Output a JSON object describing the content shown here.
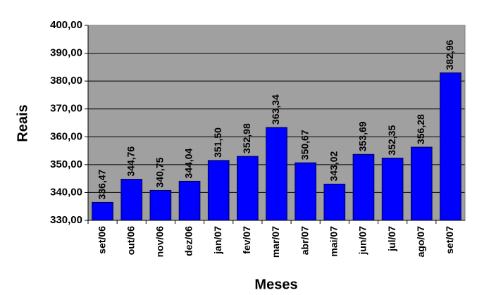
{
  "chart_data": {
    "type": "bar",
    "x_label": "Meses",
    "y_label": "Reais",
    "categories": [
      "set/06",
      "out/06",
      "nov/06",
      "dez/06",
      "jan/07",
      "fev/07",
      "mar/07",
      "abr/07",
      "mai/07",
      "jun/07",
      "jul/07",
      "ago/07",
      "set/07"
    ],
    "values": [
      336.47,
      344.76,
      340.75,
      344.04,
      351.5,
      352.98,
      363.34,
      350.67,
      343.02,
      353.69,
      352.35,
      356.28,
      382.96
    ],
    "value_labels": [
      "336,47",
      "344,76",
      "340,75",
      "344,04",
      "351,50",
      "352,98",
      "363,34",
      "350,67",
      "343,02",
      "353,69",
      "352,35",
      "356,28",
      "382,96"
    ],
    "color": "#0000ff",
    "ylim": [
      330,
      400
    ],
    "yticks": [
      {
        "value": 330,
        "label": "330,00"
      },
      {
        "value": 340,
        "label": "340,00"
      },
      {
        "value": 350,
        "label": "350,00"
      },
      {
        "value": 360,
        "label": "360,00"
      },
      {
        "value": 370,
        "label": "370,00"
      },
      {
        "value": 380,
        "label": "380,00"
      },
      {
        "value": 390,
        "label": "390,00"
      },
      {
        "value": 400,
        "label": "400,00"
      }
    ],
    "grid": true
  }
}
